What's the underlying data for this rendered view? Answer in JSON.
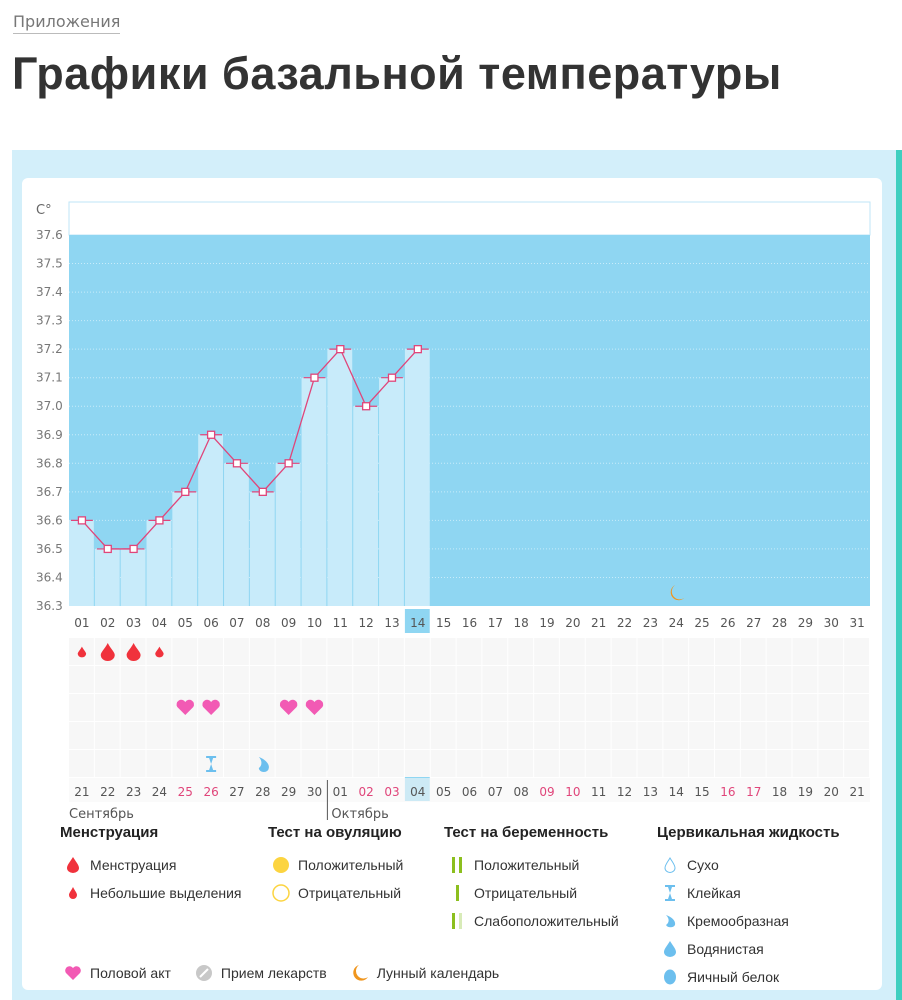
{
  "breadcrumb": "Приложения",
  "title": "Графики базальной температуры",
  "chart_data": {
    "type": "line",
    "ylabel": "C°",
    "ylim": [
      36.3,
      37.6
    ],
    "yticks": [
      "37.6",
      "37.5",
      "37.4",
      "37.3",
      "37.2",
      "37.1",
      "37.0",
      "36.9",
      "36.8",
      "36.7",
      "36.6",
      "36.5",
      "36.4",
      "36.3"
    ],
    "cycle_days": [
      "01",
      "02",
      "03",
      "04",
      "05",
      "06",
      "07",
      "08",
      "09",
      "10",
      "11",
      "12",
      "13",
      "14",
      "15",
      "16",
      "17",
      "18",
      "19",
      "20",
      "21",
      "22",
      "23",
      "24",
      "25",
      "26",
      "27",
      "28",
      "29",
      "30",
      "31"
    ],
    "temperatures": [
      36.6,
      36.5,
      36.5,
      36.6,
      36.7,
      36.9,
      36.8,
      36.7,
      36.8,
      37.1,
      37.2,
      37.0,
      37.1,
      37.2
    ],
    "current_day_index": 13,
    "dates": [
      "21",
      "22",
      "23",
      "24",
      "25",
      "26",
      "27",
      "28",
      "29",
      "30",
      "01",
      "02",
      "03",
      "04",
      "05",
      "06",
      "07",
      "08",
      "09",
      "10",
      "11",
      "12",
      "13",
      "14",
      "15",
      "16",
      "17",
      "18",
      "19",
      "20",
      "21"
    ],
    "highlighted_dates_idx": [
      4,
      5,
      11,
      12,
      18,
      19,
      25,
      26
    ],
    "months": [
      {
        "label": "Сентябрь",
        "start": 0
      },
      {
        "label": "Октябрь",
        "start": 10
      }
    ],
    "menstruation": [
      {
        "day": 0,
        "kind": "small"
      },
      {
        "day": 1,
        "kind": "full"
      },
      {
        "day": 2,
        "kind": "full"
      },
      {
        "day": 3,
        "kind": "small"
      }
    ],
    "intercourse_days": [
      4,
      5,
      8,
      9
    ],
    "cervical": [
      {
        "day": 5,
        "kind": "sticky"
      },
      {
        "day": 7,
        "kind": "creamy"
      }
    ],
    "moon_day": 23,
    "colors": {
      "plot_bg": "#8fd6f2",
      "bar": "#c8ebfa",
      "line": "#e0457a",
      "blood": "#f0323c",
      "heart": "#f25ab4",
      "fluid": "#6cbfee",
      "moon": "#f0961e",
      "highlight": "#8fd6f2",
      "red_date": "#e0457a"
    }
  },
  "legend": {
    "menstruation": {
      "title": "Менструация",
      "items": [
        "Менструация",
        "Небольшие выделения"
      ]
    },
    "ovulation": {
      "title": "Тест на овуляцию",
      "items": [
        "Положительный",
        "Отрицательный"
      ]
    },
    "pregnancy": {
      "title": "Тест на беременность",
      "items": [
        "Положительный",
        "Отрицательный",
        "Слабоположительный"
      ]
    },
    "cervical": {
      "title": "Цервикальная жидкость",
      "items": [
        "Сухо",
        "Клейкая",
        "Кремообразная",
        "Водянистая",
        "Яичный белок"
      ]
    },
    "other": [
      "Половой акт",
      "Прием лекарств",
      "Лунный календарь"
    ]
  }
}
